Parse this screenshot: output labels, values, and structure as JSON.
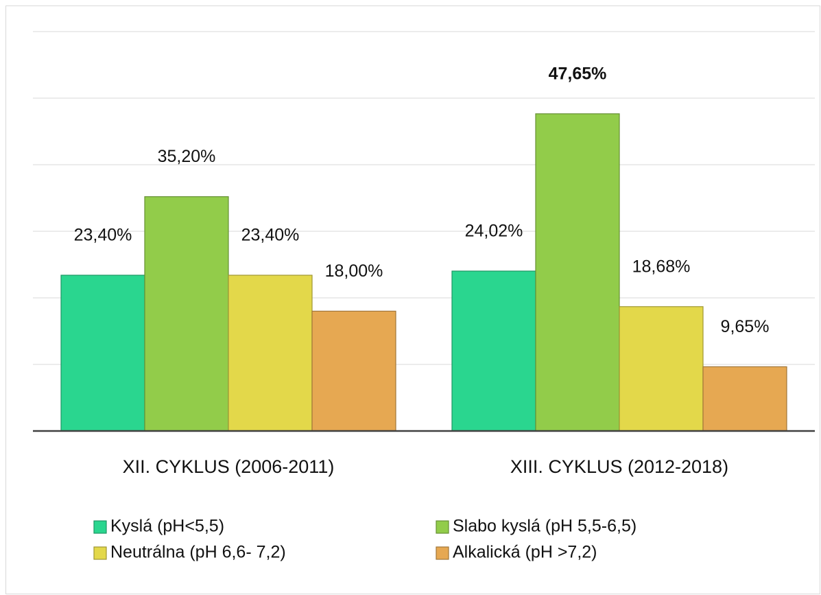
{
  "chart_data": {
    "type": "bar",
    "categories": [
      "XII. CYKLUS (2006-2011)",
      "XIII. CYKLUS (2012-2018)"
    ],
    "series": [
      {
        "name": "Kyslá (pH<5,5)",
        "color": "#2ad68f",
        "values": [
          23.4,
          24.02
        ],
        "value_labels": [
          "23,40%",
          "24,02%"
        ]
      },
      {
        "name": "Slabo kyslá (pH 5,5-6,5)",
        "color": "#92cc4a",
        "values": [
          35.2,
          47.65
        ],
        "value_labels": [
          "35,20%",
          "47,65%"
        ]
      },
      {
        "name": "Neutrálna (pH 6,6- 7,2)",
        "color": "#e3d84a",
        "values": [
          23.4,
          18.68
        ],
        "value_labels": [
          "23,40%",
          "18,68%"
        ]
      },
      {
        "name": "Alkalická (pH >7,2)",
        "color": "#e6a852",
        "values": [
          18.0,
          9.65
        ],
        "value_labels": [
          "18,00%",
          "9,65%"
        ]
      }
    ],
    "ylim": [
      0,
      60
    ],
    "yticks": [
      0,
      10,
      20,
      30,
      40,
      50,
      60
    ],
    "grid": true
  }
}
